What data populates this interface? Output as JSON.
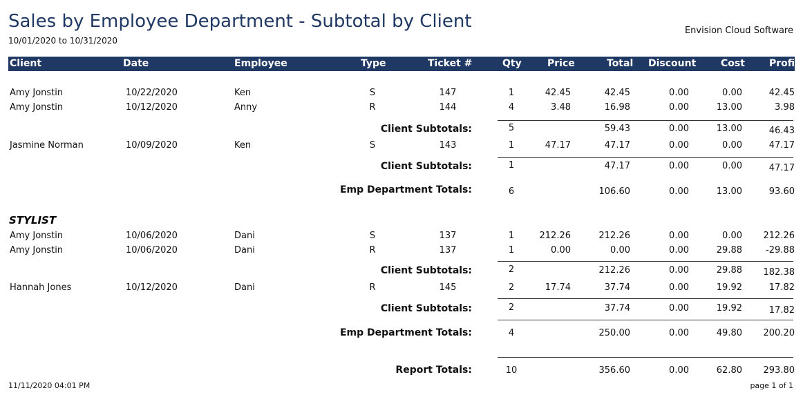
{
  "report": {
    "title": "Sales by Employee Department - Subtotal by Client",
    "date_range": "10/01/2020 to 10/31/2020",
    "company": "Envision Cloud Software",
    "printed_at": "11/11/2020 04:01 PM",
    "page_label": "page 1 of 1"
  },
  "columns": [
    "Client",
    "Date",
    "Employee",
    "Type",
    "Ticket #",
    "Qty",
    "Price",
    "Total",
    "Discount",
    "Cost",
    "Profit"
  ],
  "labels": {
    "client_subtotals": "Client Subtotals:",
    "emp_department_totals": "Emp Department  Totals:",
    "report_totals": "Report Totals:"
  },
  "groups": [
    {
      "name": "",
      "clients": [
        {
          "rows": [
            {
              "client": "Amy Jonstin",
              "date": "10/22/2020",
              "employee": "Ken",
              "type": "S",
              "ticket": "147",
              "qty": "1",
              "price": "42.45",
              "total": "42.45",
              "discount": "0.00",
              "cost": "0.00",
              "profit": "42.45"
            },
            {
              "client": "Amy Jonstin",
              "date": "10/12/2020",
              "employee": "Anny",
              "type": "R",
              "ticket": "144",
              "qty": "4",
              "price": "3.48",
              "total": "16.98",
              "discount": "0.00",
              "cost": "13.00",
              "profit": "3.98"
            }
          ],
          "subtotal": {
            "qty": "5",
            "total": "59.43",
            "discount": "0.00",
            "cost": "13.00",
            "profit": "46.43"
          }
        },
        {
          "rows": [
            {
              "client": "Jasmine Norman",
              "date": "10/09/2020",
              "employee": "Ken",
              "type": "S",
              "ticket": "143",
              "qty": "1",
              "price": "47.17",
              "total": "47.17",
              "discount": "0.00",
              "cost": "0.00",
              "profit": "47.17"
            }
          ],
          "subtotal": {
            "qty": "1",
            "total": "47.17",
            "discount": "0.00",
            "cost": "0.00",
            "profit": "47.17"
          }
        }
      ],
      "totals": {
        "qty": "6",
        "total": "106.60",
        "discount": "0.00",
        "cost": "13.00",
        "profit": "93.60"
      }
    },
    {
      "name": "STYLIST",
      "clients": [
        {
          "rows": [
            {
              "client": "Amy Jonstin",
              "date": "10/06/2020",
              "employee": "Dani",
              "type": "S",
              "ticket": "137",
              "qty": "1",
              "price": "212.26",
              "total": "212.26",
              "discount": "0.00",
              "cost": "0.00",
              "profit": "212.26"
            },
            {
              "client": "Amy Jonstin",
              "date": "10/06/2020",
              "employee": "Dani",
              "type": "R",
              "ticket": "137",
              "qty": "1",
              "price": "0.00",
              "total": "0.00",
              "discount": "0.00",
              "cost": "29.88",
              "profit": "-29.88"
            }
          ],
          "subtotal": {
            "qty": "2",
            "total": "212.26",
            "discount": "0.00",
            "cost": "29.88",
            "profit": "182.38"
          }
        },
        {
          "rows": [
            {
              "client": "Hannah Jones",
              "date": "10/12/2020",
              "employee": "Dani",
              "type": "R",
              "ticket": "145",
              "qty": "2",
              "price": "17.74",
              "total": "37.74",
              "discount": "0.00",
              "cost": "19.92",
              "profit": "17.82"
            }
          ],
          "subtotal": {
            "qty": "2",
            "total": "37.74",
            "discount": "0.00",
            "cost": "19.92",
            "profit": "17.82"
          }
        }
      ],
      "totals": {
        "qty": "4",
        "total": "250.00",
        "discount": "0.00",
        "cost": "49.80",
        "profit": "200.20"
      }
    }
  ],
  "report_totals": {
    "qty": "10",
    "total": "356.60",
    "discount": "0.00",
    "cost": "62.80",
    "profit": "293.80"
  }
}
